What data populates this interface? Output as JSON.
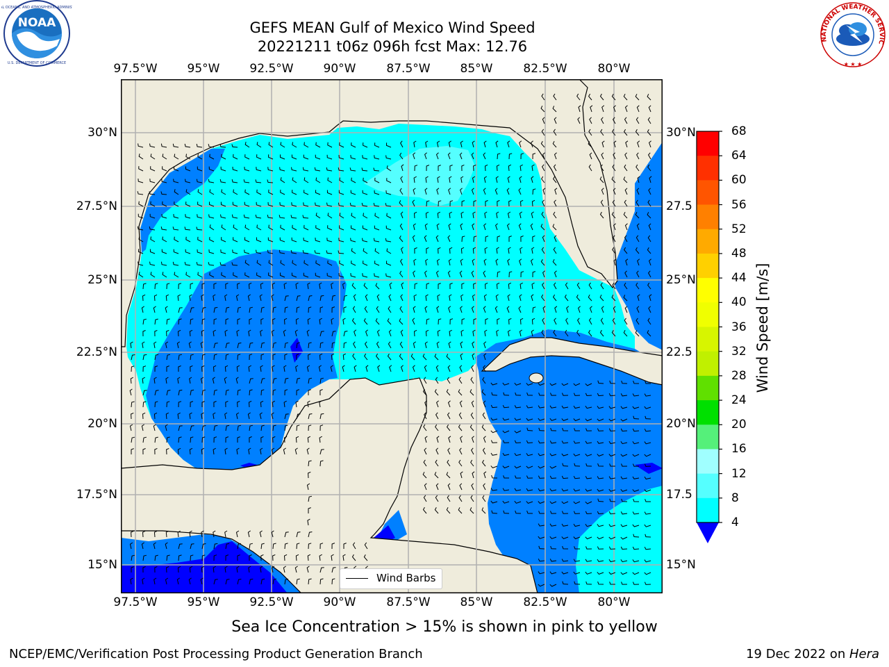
{
  "title": {
    "line1": "GEFS MEAN Gulf of Mexico Wind Speed",
    "line2": "20221211 t06z 096h fcst   Max: 12.76"
  },
  "map": {
    "region": "Gulf of Mexico",
    "lon_ticks": [
      "97.5°W",
      "95°W",
      "92.5°W",
      "90°W",
      "87.5°W",
      "85°W",
      "82.5°W",
      "80°W"
    ],
    "lat_ticks_left": [
      "30°N",
      "27.5°N",
      "25°N",
      "22.5°N",
      "20°N",
      "17.5°N",
      "15°N"
    ],
    "lat_ticks_right": [
      "30°N",
      "27.5",
      "25°N",
      "22.5",
      "20°N",
      "17.5",
      "15°N"
    ],
    "land_color": "#efecdc",
    "gridlines": true,
    "legend": {
      "label": "Wind Barbs",
      "position": "bottom-center"
    }
  },
  "colorbar": {
    "label": "Wind Speed [m/s]",
    "ticks": [
      "68",
      "64",
      "60",
      "56",
      "52",
      "48",
      "44",
      "40",
      "36",
      "32",
      "28",
      "24",
      "20",
      "16",
      "12",
      "8",
      "4"
    ],
    "colors": [
      "#ff0000",
      "#ff3000",
      "#ff5500",
      "#ff8000",
      "#ffaa00",
      "#ffd000",
      "#ffff00",
      "#f0ff00",
      "#d7f500",
      "#c0f000",
      "#60e000",
      "#00e000",
      "#55f07a",
      "#a0ffff",
      "#55ffff",
      "#00ffff",
      "#0080ff",
      "#0000ff"
    ]
  },
  "sea_ice_note": "Sea Ice Concentration > 15% is shown in pink to yellow",
  "footer": {
    "left": "NCEP/EMC/Verification Post Processing Product Generation Branch",
    "right_prefix": "19 Dec 2022 on ",
    "right_machine": "Hera"
  },
  "logos": {
    "left": {
      "name": "NOAA",
      "text": "NOAA"
    },
    "right": {
      "name": "National Weather Service",
      "text": "NATIONAL WEATHER SERVICE"
    }
  }
}
